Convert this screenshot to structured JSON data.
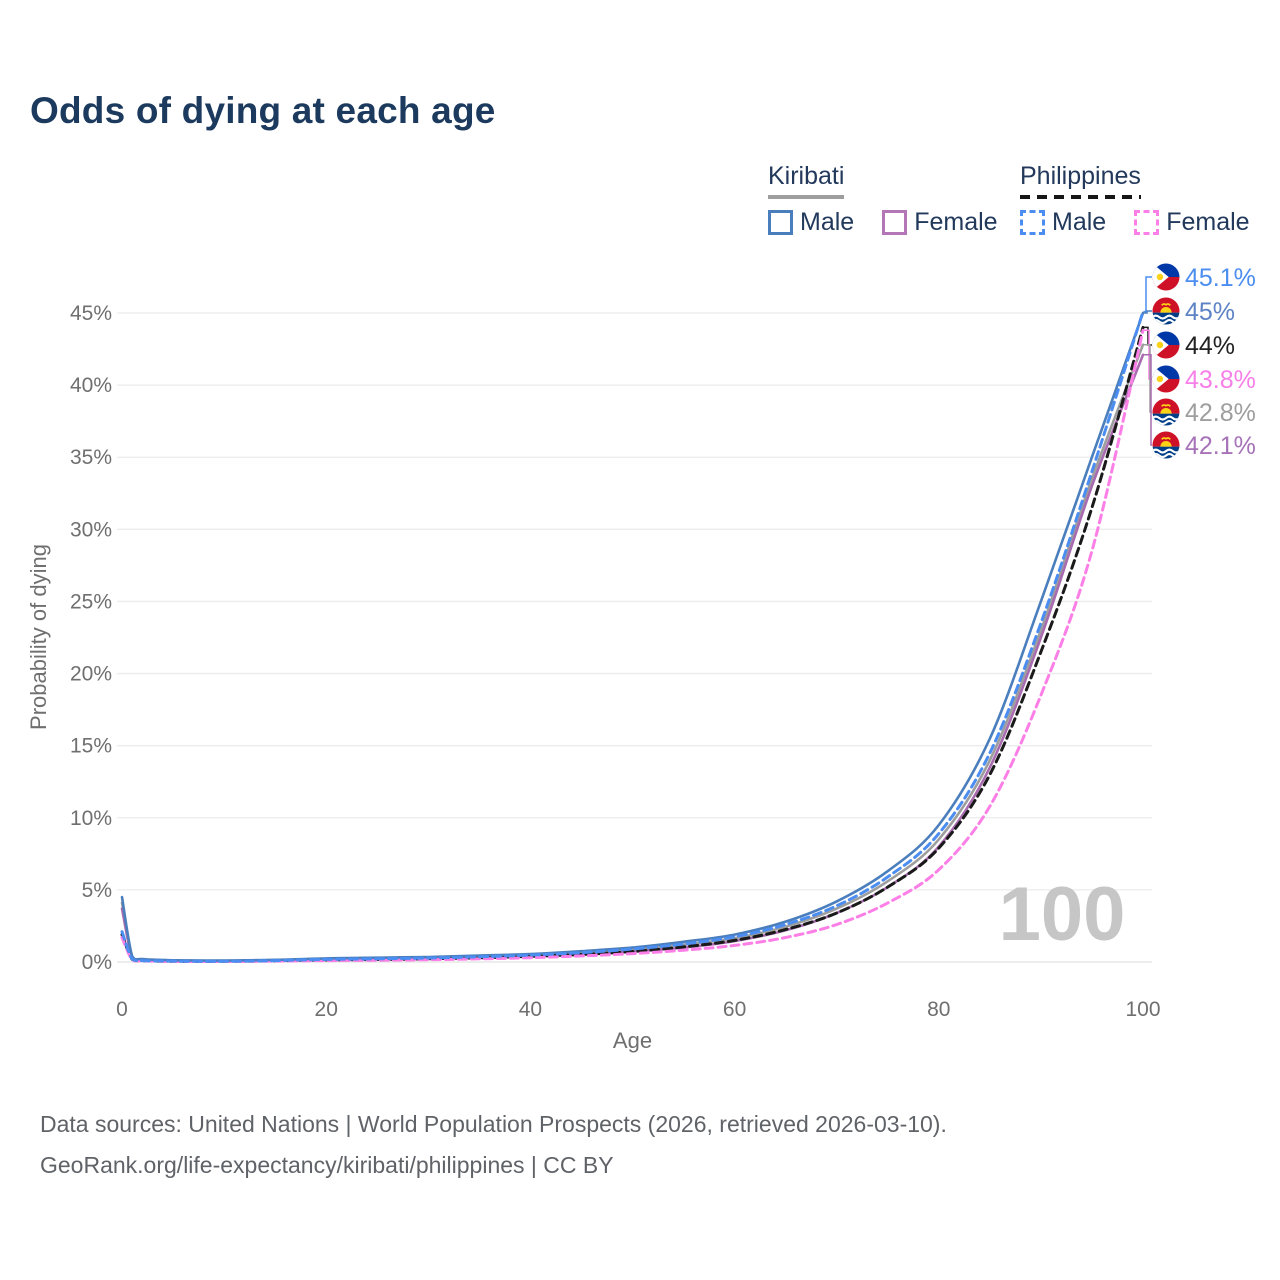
{
  "title": "Odds of dying at each age",
  "legend": {
    "groups": [
      {
        "name": "Kiribati",
        "underline": "solid",
        "underline_color": "#9e9e9e",
        "items": [
          {
            "label": "Male",
            "color": "#4a7ebc",
            "dashed": false
          },
          {
            "label": "Female",
            "color": "#b377b8",
            "dashed": false
          }
        ]
      },
      {
        "name": "Philippines",
        "underline": "dashed",
        "underline_color": "#161616",
        "items": [
          {
            "label": "Male",
            "color": "#4b8df0",
            "dashed": true
          },
          {
            "label": "Female",
            "color": "#fb7fe6",
            "dashed": true
          }
        ]
      }
    ]
  },
  "chart_data": {
    "type": "line",
    "title": "Odds of dying at each age",
    "xlabel": "Age",
    "ylabel": "Probability of dying",
    "x_ticks": [
      0,
      20,
      40,
      60,
      80,
      100
    ],
    "y_ticks_pct": [
      0,
      5,
      10,
      15,
      20,
      25,
      30,
      35,
      40,
      45
    ],
    "xlim": [
      0,
      100
    ],
    "ylim_pct": [
      0,
      47
    ],
    "grid": true,
    "legend_position": "top-right",
    "watermark": "100",
    "ages": [
      0,
      1,
      2,
      5,
      10,
      15,
      20,
      25,
      30,
      35,
      40,
      45,
      50,
      55,
      60,
      65,
      70,
      75,
      80,
      85,
      90,
      95,
      100
    ],
    "series": [
      {
        "name": "Kiribati",
        "color": "#9e9e9e",
        "dash": "solid",
        "width": 2.6,
        "values_pct": [
          4.1,
          0.35,
          0.18,
          0.1,
          0.09,
          0.12,
          0.2,
          0.24,
          0.29,
          0.37,
          0.47,
          0.63,
          0.85,
          1.2,
          1.65,
          2.45,
          3.7,
          5.6,
          8.5,
          14.0,
          23.0,
          33.5,
          42.8
        ]
      },
      {
        "name": "Kiribati Female",
        "color": "#a96bb0",
        "dash": "solid",
        "width": 2.6,
        "values_pct": [
          3.7,
          0.3,
          0.15,
          0.09,
          0.08,
          0.1,
          0.15,
          0.18,
          0.22,
          0.3,
          0.4,
          0.52,
          0.72,
          1.0,
          1.45,
          2.2,
          3.4,
          5.2,
          8.0,
          13.5,
          22.5,
          33.0,
          42.1
        ]
      },
      {
        "name": "Philippines",
        "color": "#1a1a1a",
        "dash": "dashed",
        "width": 3,
        "values_pct": [
          1.9,
          0.18,
          0.09,
          0.05,
          0.05,
          0.08,
          0.14,
          0.17,
          0.22,
          0.29,
          0.39,
          0.52,
          0.73,
          1.05,
          1.5,
          2.25,
          3.4,
          5.2,
          7.9,
          13.0,
          21.5,
          31.5,
          44.0
        ]
      },
      {
        "name": "Philippines Female",
        "color": "#fb7fe6",
        "dash": "dashed",
        "width": 3,
        "values_pct": [
          1.7,
          0.15,
          0.08,
          0.04,
          0.04,
          0.06,
          0.1,
          0.12,
          0.16,
          0.22,
          0.3,
          0.42,
          0.58,
          0.82,
          1.15,
          1.7,
          2.6,
          4.1,
          6.4,
          10.8,
          18.5,
          28.5,
          43.8
        ]
      },
      {
        "name": "Kiribati Male",
        "color": "#4a7ebc",
        "dash": "solid",
        "width": 2.6,
        "values_pct": [
          4.5,
          0.4,
          0.2,
          0.12,
          0.1,
          0.15,
          0.25,
          0.3,
          0.35,
          0.45,
          0.55,
          0.75,
          1.0,
          1.4,
          1.9,
          2.8,
          4.2,
          6.3,
          9.5,
          15.5,
          25.0,
          35.0,
          45.0
        ]
      },
      {
        "name": "Philippines Male",
        "color": "#4b8df0",
        "dash": "dashed",
        "width": 3,
        "values_pct": [
          2.1,
          0.2,
          0.1,
          0.06,
          0.05,
          0.1,
          0.18,
          0.22,
          0.28,
          0.36,
          0.48,
          0.65,
          0.9,
          1.25,
          1.75,
          2.6,
          3.9,
          5.9,
          8.9,
          14.5,
          23.5,
          34.0,
          45.1
        ]
      }
    ],
    "end_labels": [
      {
        "text": "45.1%",
        "color": "#4b8df0",
        "flag": "ph",
        "series": "Philippines Male"
      },
      {
        "text": "45%",
        "color": "#5d83c4",
        "flag": "ki",
        "series": "Kiribati Male"
      },
      {
        "text": "44%",
        "color": "#222222",
        "flag": "ph",
        "series": "Philippines"
      },
      {
        "text": "43.8%",
        "color": "#f77fe8",
        "flag": "ph",
        "series": "Philippines Female"
      },
      {
        "text": "42.8%",
        "color": "#9e9e9e",
        "flag": "ki",
        "series": "Kiribati"
      },
      {
        "text": "42.1%",
        "color": "#a672b8",
        "flag": "ki",
        "series": "Kiribati Female"
      }
    ]
  },
  "footer": {
    "line1": "Data sources: United Nations | World Population Prospects (2026, retrieved 2026-03-10).",
    "line2": "GeoRank.org/life-expectancy/kiribati/philippines | CC BY"
  }
}
